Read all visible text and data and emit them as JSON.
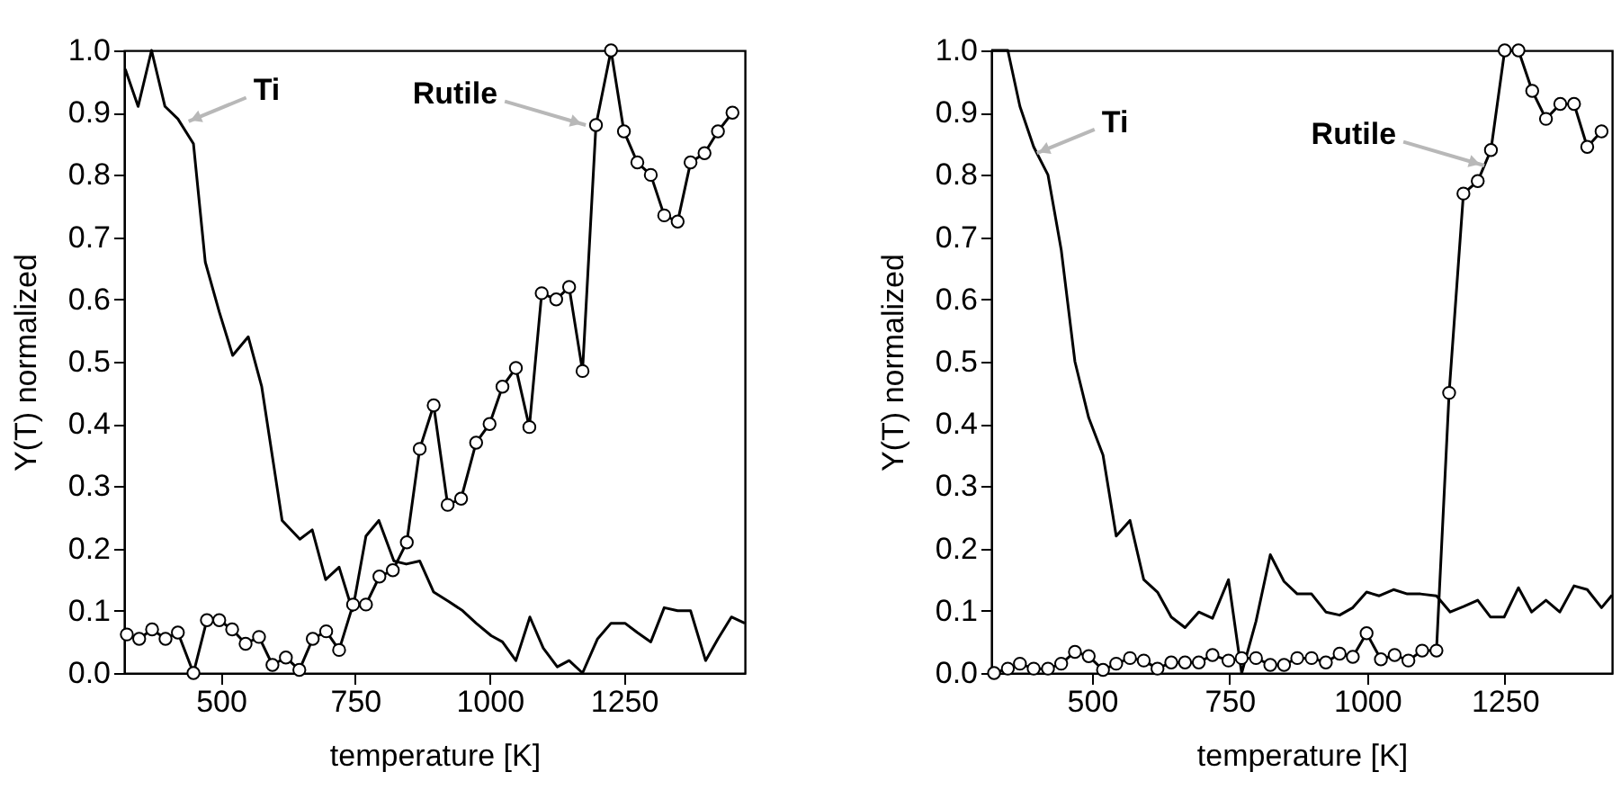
{
  "chart_data": [
    {
      "type": "line",
      "xlabel": "temperature [K]",
      "ylabel": "Y(T) normalized",
      "xlim": [
        320,
        1475
      ],
      "ylim": [
        0,
        1
      ],
      "xticks": [
        500,
        750,
        1000,
        1250
      ],
      "yticks": [
        {
          "value": 0,
          "label": "0.0"
        },
        {
          "value": 0.1,
          "label": "0.1"
        },
        {
          "value": 0.2,
          "label": "0.2"
        },
        {
          "value": 0.3,
          "label": "0.3"
        },
        {
          "value": 0.4,
          "label": "0.4"
        },
        {
          "value": 0.5,
          "label": "0.5"
        },
        {
          "value": 0.6,
          "label": "0.6"
        },
        {
          "value": 0.7,
          "label": "0.7"
        },
        {
          "value": 0.8,
          "label": "0.8"
        },
        {
          "value": 0.9,
          "label": "0.9"
        },
        {
          "value": 1,
          "label": "1.0"
        }
      ],
      "grid": false,
      "line_style": "solid",
      "series": [
        {
          "color": "#000000",
          "marker": "none",
          "x": [
            322,
            346,
            371,
            396,
            420,
            449,
            471,
            497,
            522,
            551,
            576,
            599,
            614,
            647,
            670,
            695,
            720,
            745,
            770,
            794,
            822,
            845,
            870,
            896,
            924,
            950,
            975,
            1003,
            1024,
            1049,
            1075,
            1100,
            1126,
            1148,
            1173,
            1201,
            1226,
            1252,
            1275,
            1300,
            1325,
            1350,
            1374,
            1402,
            1425,
            1450,
            1475
          ],
          "values": [
            0.97,
            0.91,
            1.0,
            0.91,
            0.89,
            0.85,
            0.66,
            0.58,
            0.51,
            0.54,
            0.46,
            0.33,
            0.245,
            0.215,
            0.23,
            0.15,
            0.17,
            0.1,
            0.22,
            0.245,
            0.18,
            0.175,
            0.18,
            0.13,
            0.115,
            0.1,
            0.08,
            0.06,
            0.05,
            0.02,
            0.09,
            0.04,
            0.01,
            0.02,
            0.0,
            0.055,
            0.08,
            0.08,
            0.065,
            0.05,
            0.105,
            0.1,
            0.1,
            0.02,
            0.055,
            0.09,
            0.08
          ]
        },
        {
          "color": "#000000",
          "marker": "circle",
          "x": [
            325,
            348,
            372,
            397,
            420,
            449,
            474,
            497,
            521,
            546,
            571,
            596,
            621,
            646,
            671,
            696,
            720,
            746,
            770,
            795,
            820,
            846,
            870,
            896,
            922,
            947,
            975,
            1000,
            1024,
            1049,
            1074,
            1097,
            1124,
            1148,
            1173,
            1198,
            1226,
            1250,
            1275,
            1300,
            1325,
            1350,
            1374,
            1400,
            1425,
            1452
          ],
          "values": [
            0.062,
            0.055,
            0.07,
            0.055,
            0.065,
            0.0,
            0.085,
            0.085,
            0.07,
            0.047,
            0.058,
            0.013,
            0.025,
            0.005,
            0.055,
            0.067,
            0.037,
            0.11,
            0.11,
            0.155,
            0.165,
            0.21,
            0.36,
            0.43,
            0.27,
            0.28,
            0.37,
            0.4,
            0.46,
            0.49,
            0.395,
            0.61,
            0.6,
            0.62,
            0.485,
            0.88,
            1.0,
            0.87,
            0.82,
            0.8,
            0.735,
            0.725,
            0.82,
            0.835,
            0.87,
            0.9
          ]
        }
      ],
      "annotations": [
        {
          "text": "Ti",
          "x": 440,
          "y": 0.886
        },
        {
          "text": "Rutile",
          "x": 1179,
          "y": 0.88
        }
      ]
    },
    {
      "type": "line",
      "xlabel": "temperature [K]",
      "ylabel": "Y(T) normalized",
      "xlim": [
        317,
        1445
      ],
      "ylim": [
        0,
        1
      ],
      "xticks": [
        500,
        750,
        1000,
        1250
      ],
      "yticks": [
        {
          "value": 0,
          "label": "0.0"
        },
        {
          "value": 0.1,
          "label": "0.1"
        },
        {
          "value": 0.2,
          "label": "0.2"
        },
        {
          "value": 0.3,
          "label": "0.3"
        },
        {
          "value": 0.4,
          "label": "0.4"
        },
        {
          "value": 0.5,
          "label": "0.5"
        },
        {
          "value": 0.6,
          "label": "0.6"
        },
        {
          "value": 0.7,
          "label": "0.7"
        },
        {
          "value": 0.8,
          "label": "0.8"
        },
        {
          "value": 0.9,
          "label": "0.9"
        },
        {
          "value": 1,
          "label": "1.0"
        }
      ],
      "grid": false,
      "line_style": "solid",
      "series": [
        {
          "color": "#000000",
          "marker": "none",
          "x": [
            317,
            347,
            369,
            394,
            420,
            444,
            469,
            494,
            520,
            544,
            569,
            594,
            619,
            644,
            669,
            694,
            719,
            748,
            772,
            798,
            824,
            849,
            873,
            899,
            925,
            950,
            974,
            999,
            1022,
            1048,
            1073,
            1097,
            1126,
            1151,
            1176,
            1201,
            1224,
            1249,
            1275,
            1299,
            1325,
            1350,
            1376,
            1400,
            1426,
            1445
          ],
          "values": [
            1.0,
            1.0,
            0.91,
            0.845,
            0.8,
            0.68,
            0.5,
            0.41,
            0.35,
            0.22,
            0.245,
            0.15,
            0.13,
            0.09,
            0.073,
            0.098,
            0.088,
            0.15,
            0.0,
            0.083,
            0.19,
            0.147,
            0.127,
            0.127,
            0.098,
            0.093,
            0.105,
            0.13,
            0.124,
            0.134,
            0.127,
            0.127,
            0.124,
            0.098,
            0.107,
            0.117,
            0.09,
            0.09,
            0.137,
            0.098,
            0.117,
            0.098,
            0.14,
            0.134,
            0.105,
            0.125
          ]
        },
        {
          "color": "#000000",
          "marker": "circle",
          "x": [
            322,
            347,
            369,
            394,
            420,
            444,
            469,
            494,
            520,
            544,
            569,
            594,
            619,
            644,
            669,
            694,
            719,
            748,
            772,
            798,
            824,
            849,
            873,
            899,
            925,
            950,
            974,
            999,
            1025,
            1050,
            1075,
            1100,
            1126,
            1149,
            1175,
            1201,
            1225,
            1250,
            1275,
            1300,
            1325,
            1351,
            1376,
            1400,
            1426
          ],
          "values": [
            0.0,
            0.007,
            0.015,
            0.007,
            0.007,
            0.015,
            0.034,
            0.027,
            0.005,
            0.015,
            0.024,
            0.02,
            0.007,
            0.017,
            0.017,
            0.017,
            0.029,
            0.02,
            0.024,
            0.024,
            0.013,
            0.013,
            0.024,
            0.024,
            0.017,
            0.031,
            0.026,
            0.064,
            0.022,
            0.029,
            0.02,
            0.036,
            0.036,
            0.45,
            0.77,
            0.79,
            0.84,
            1.0,
            1.0,
            0.935,
            0.89,
            0.914,
            0.914,
            0.845,
            0.87
          ]
        }
      ],
      "annotations": [
        {
          "text": "Ti",
          "x": 400,
          "y": 0.835
        },
        {
          "text": "Rutile",
          "x": 1213,
          "y": 0.815
        }
      ]
    }
  ]
}
